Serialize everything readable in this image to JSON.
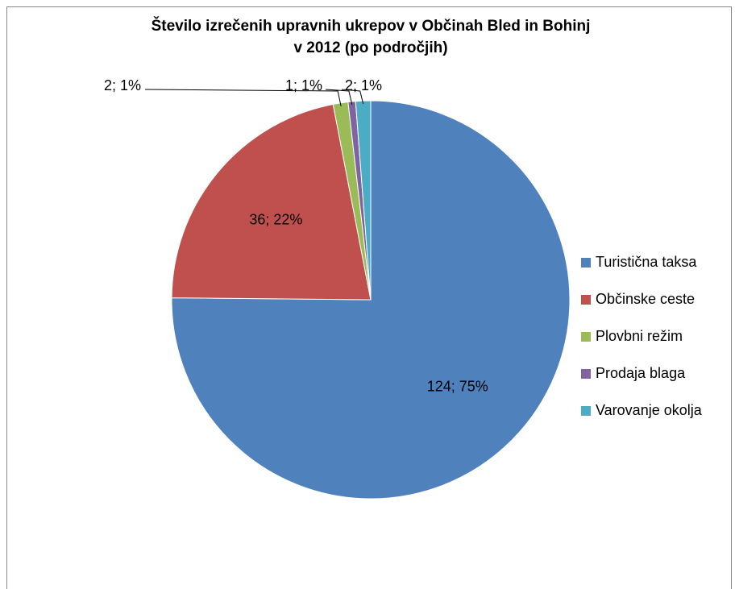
{
  "chart_data": {
    "type": "pie",
    "title": [
      "Število izrečenih upravnih ukrepov v Občinah Bled in Bohinj",
      "v 2012 (po področjih)"
    ],
    "categories": [
      "Turistična taksa",
      "Občinske ceste",
      "Plovbni režim",
      "Prodaja blaga",
      "Varovanje okolja"
    ],
    "values": [
      124,
      36,
      2,
      1,
      2
    ],
    "value_labels": [
      "124; 75%",
      "36; 22%",
      "2; 1%",
      "1; 1%",
      "2; 1%"
    ],
    "colors": [
      "#4f81bd",
      "#c0504d",
      "#9bbb59",
      "#8064a2",
      "#4bacc6"
    ],
    "legend": "right"
  }
}
